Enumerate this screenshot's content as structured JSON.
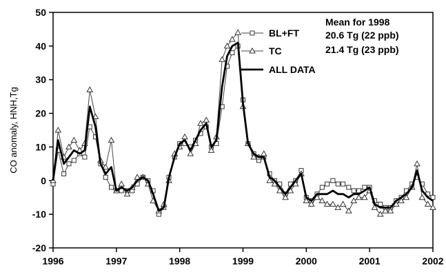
{
  "chart_data": {
    "type": "line",
    "title": "",
    "xlabel": "",
    "ylabel": "CO anomaly, HNH,Tg",
    "xlim": [
      1996,
      2002
    ],
    "ylim": [
      -20,
      50
    ],
    "x_ticks": [
      "1996",
      "1997",
      "1998",
      "1999",
      "2000",
      "2001",
      "2002"
    ],
    "y_ticks": [
      "-20",
      "-10",
      "0",
      "10",
      "20",
      "30",
      "40",
      "50"
    ],
    "grid": false,
    "legend_position": "top-center",
    "annotation": {
      "heading": "Mean for 1998",
      "lines": [
        "20.6 Tg (22 ppb)",
        "21.4 Tg (23 ppb)"
      ]
    },
    "series": [
      {
        "name": "BL+FT",
        "marker": "square",
        "x": [
          1996.0,
          1996.08,
          1996.17,
          1996.25,
          1996.33,
          1996.42,
          1996.5,
          1996.58,
          1996.67,
          1996.75,
          1996.83,
          1996.92,
          1997.0,
          1997.08,
          1997.17,
          1997.25,
          1997.33,
          1997.42,
          1997.5,
          1997.58,
          1997.67,
          1997.75,
          1997.83,
          1997.92,
          1998.0,
          1998.08,
          1998.17,
          1998.25,
          1998.33,
          1998.42,
          1998.5,
          1998.58,
          1998.67,
          1998.75,
          1998.83,
          1998.92,
          1999.0,
          1999.08,
          1999.17,
          1999.25,
          1999.33,
          1999.42,
          1999.5,
          1999.58,
          1999.67,
          1999.75,
          1999.83,
          1999.92,
          2000.0,
          2000.08,
          2000.17,
          2000.25,
          2000.33,
          2000.42,
          2000.5,
          2000.58,
          2000.67,
          2000.75,
          2000.83,
          2000.92,
          2001.0,
          2001.08,
          2001.17,
          2001.25,
          2001.33,
          2001.42,
          2001.5,
          2001.58,
          2001.67,
          2001.75,
          2001.83,
          2001.92,
          2002.0
        ],
        "y": [
          -1,
          9,
          2,
          5,
          6,
          8,
          7,
          16,
          13,
          5,
          1,
          -2,
          -3,
          -3,
          -3,
          -3,
          -1,
          1,
          0,
          -3,
          -10,
          -8,
          1,
          7,
          11,
          11,
          10,
          12,
          14,
          16,
          10,
          11,
          22,
          34,
          38,
          40,
          24,
          11,
          8,
          6,
          7,
          2,
          0,
          -1,
          -4,
          -1,
          0,
          3,
          -5,
          -6,
          -4,
          -2,
          -1,
          0,
          -1,
          -1,
          -2,
          -3,
          -3,
          -2,
          -2,
          -6,
          -7,
          -8,
          -8,
          -6,
          -5,
          -3,
          -1,
          1,
          -1,
          -4,
          -5
        ]
      },
      {
        "name": "TC",
        "marker": "triangle",
        "x": [
          1996.0,
          1996.08,
          1996.17,
          1996.25,
          1996.33,
          1996.42,
          1996.5,
          1996.58,
          1996.67,
          1996.75,
          1996.83,
          1996.92,
          1997.0,
          1997.08,
          1997.17,
          1997.25,
          1997.33,
          1997.42,
          1997.5,
          1997.58,
          1997.67,
          1997.75,
          1997.83,
          1997.92,
          1998.0,
          1998.08,
          1998.17,
          1998.25,
          1998.33,
          1998.42,
          1998.5,
          1998.58,
          1998.67,
          1998.75,
          1998.83,
          1998.92,
          1999.0,
          1999.08,
          1999.17,
          1999.25,
          1999.33,
          1999.42,
          1999.5,
          1999.58,
          1999.67,
          1999.75,
          1999.83,
          1999.92,
          2000.0,
          2000.08,
          2000.17,
          2000.25,
          2000.33,
          2000.42,
          2000.5,
          2000.58,
          2000.67,
          2000.75,
          2000.83,
          2000.92,
          2001.0,
          2001.08,
          2001.17,
          2001.25,
          2001.33,
          2001.42,
          2001.5,
          2001.58,
          2001.67,
          2001.75,
          2001.83,
          2001.92,
          2002.0
        ],
        "y": [
          0,
          15,
          7,
          10,
          12,
          9,
          11,
          27,
          19,
          6,
          4,
          12,
          -3,
          -1,
          -4,
          -2,
          1,
          1,
          -1,
          -6,
          -9,
          -7,
          0,
          8,
          10,
          13,
          8,
          11,
          17,
          18,
          9,
          13,
          36,
          40,
          42,
          44,
          22,
          11,
          7,
          7,
          8,
          0,
          -1,
          -3,
          -5,
          -3,
          -1,
          2,
          -6,
          -7,
          -5,
          -6,
          -7,
          -7,
          -8,
          -7,
          -9,
          -6,
          -5,
          -5,
          -3,
          -8,
          -10,
          -9,
          -9,
          -7,
          -6,
          -5,
          -2,
          5,
          -5,
          -7,
          -8
        ]
      },
      {
        "name": "ALL DATA",
        "marker": "line",
        "x": [
          1996.0,
          1996.08,
          1996.17,
          1996.25,
          1996.33,
          1996.42,
          1996.5,
          1996.58,
          1996.67,
          1996.75,
          1996.83,
          1996.92,
          1997.0,
          1997.08,
          1997.17,
          1997.25,
          1997.33,
          1997.42,
          1997.5,
          1997.58,
          1997.67,
          1997.75,
          1997.83,
          1997.92,
          1998.0,
          1998.08,
          1998.17,
          1998.25,
          1998.33,
          1998.42,
          1998.5,
          1998.58,
          1998.67,
          1998.75,
          1998.83,
          1998.92,
          1999.0,
          1999.08,
          1999.17,
          1999.25,
          1999.33,
          1999.42,
          1999.5,
          1999.58,
          1999.67,
          1999.75,
          1999.83,
          1999.92,
          2000.0,
          2000.08,
          2000.17,
          2000.25,
          2000.33,
          2000.42,
          2000.5,
          2000.58,
          2000.67,
          2000.75,
          2000.83,
          2000.92,
          2001.0,
          2001.08,
          2001.17,
          2001.25,
          2001.33,
          2001.42,
          2001.5,
          2001.58,
          2001.67,
          2001.75,
          2001.83,
          2001.92,
          2002.0
        ],
        "y": [
          0,
          12,
          5,
          7,
          9,
          8,
          9,
          22,
          16,
          5,
          2,
          4,
          -3,
          -2,
          -3,
          -2,
          0,
          1,
          0,
          -4,
          -9,
          -8,
          1,
          7,
          11,
          12,
          9,
          12,
          15,
          17,
          10,
          12,
          28,
          37,
          40,
          41,
          23,
          11,
          8,
          7,
          7,
          1,
          0,
          -2,
          -4,
          -2,
          0,
          2,
          -5,
          -6,
          -4,
          -4,
          -4,
          -3,
          -4,
          -4,
          -5,
          -4,
          -4,
          -3,
          -2,
          -7,
          -8,
          -8,
          -8,
          -6,
          -5,
          -4,
          -2,
          3,
          -3,
          -5,
          -6
        ]
      }
    ]
  }
}
